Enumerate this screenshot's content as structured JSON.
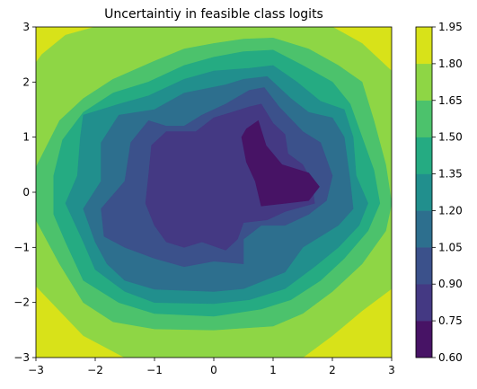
{
  "chart_data": {
    "type": "contour",
    "title": "Uncertaintiy in feasible class logits",
    "xlabel": "",
    "ylabel": "",
    "xlim": [
      -3,
      3
    ],
    "ylim": [
      -3,
      3
    ],
    "x_ticks": [
      "−3",
      "−2",
      "−1",
      "0",
      "1",
      "2",
      "3"
    ],
    "y_ticks": [
      "−3",
      "−2",
      "−1",
      "0",
      "1",
      "2",
      "3"
    ],
    "colorbar": {
      "levels": [
        0.6,
        0.75,
        0.9,
        1.05,
        1.2,
        1.35,
        1.5,
        1.65,
        1.8,
        1.95
      ],
      "labels": [
        "0.60",
        "0.75",
        "0.90",
        "1.05",
        "1.20",
        "1.35",
        "1.50",
        "1.65",
        "1.80",
        "1.95"
      ],
      "colors": [
        "#471365",
        "#443983",
        "#3b518b",
        "#2d6f8e",
        "#218f8d",
        "#25ab82",
        "#4cc26c",
        "#8ed645",
        "#d8e219"
      ]
    },
    "contour_regions": [
      {
        "level_min": 1.8,
        "level_max": 1.95,
        "color": "#d8e219",
        "outline": [
          [
            -3,
            3
          ],
          [
            3,
            3
          ],
          [
            3,
            -3
          ],
          [
            -3,
            -3
          ]
        ]
      },
      {
        "level_min": 1.65,
        "level_max": 1.8,
        "color": "#8ed645",
        "outline": [
          [
            -3,
            2.35
          ],
          [
            -2.9,
            2.5
          ],
          [
            -2.5,
            2.85
          ],
          [
            -2,
            3
          ],
          [
            2,
            3
          ],
          [
            2.5,
            2.7
          ],
          [
            3,
            2.2
          ],
          [
            3,
            -1.75
          ],
          [
            2.5,
            -2.15
          ],
          [
            2,
            -2.6
          ],
          [
            1.5,
            -3
          ],
          [
            -1.5,
            -3
          ],
          [
            -2.2,
            -2.6
          ],
          [
            -3,
            -1.7
          ]
        ]
      },
      {
        "level_min": 1.5,
        "level_max": 1.65,
        "color": "#4cc26c",
        "outline": [
          [
            -3,
            0.45
          ],
          [
            -2.6,
            1.3
          ],
          [
            -2.2,
            1.7
          ],
          [
            -1.7,
            2.05
          ],
          [
            -1,
            2.38
          ],
          [
            -0.5,
            2.6
          ],
          [
            0,
            2.7
          ],
          [
            0.5,
            2.78
          ],
          [
            1,
            2.8
          ],
          [
            1.6,
            2.6
          ],
          [
            2.1,
            2.3
          ],
          [
            2.5,
            2
          ],
          [
            2.7,
            1.3
          ],
          [
            2.9,
            0.5
          ],
          [
            3,
            -0.2
          ],
          [
            2.9,
            -0.7
          ],
          [
            2.5,
            -1.3
          ],
          [
            2,
            -1.8
          ],
          [
            1.5,
            -2.2
          ],
          [
            1,
            -2.43
          ],
          [
            0,
            -2.5
          ],
          [
            -1,
            -2.48
          ],
          [
            -1.7,
            -2.35
          ],
          [
            -2.2,
            -2
          ],
          [
            -2.6,
            -1.3
          ],
          [
            -3,
            -0.5
          ]
        ]
      },
      {
        "level_min": 1.35,
        "level_max": 1.5,
        "color": "#25ab82",
        "outline": [
          [
            -2.7,
            0.3
          ],
          [
            -2.55,
            0.95
          ],
          [
            -2.2,
            1.45
          ],
          [
            -1.7,
            1.8
          ],
          [
            -1.1,
            2
          ],
          [
            -0.5,
            2.3
          ],
          [
            0,
            2.45
          ],
          [
            0.5,
            2.55
          ],
          [
            1,
            2.58
          ],
          [
            1.5,
            2.3
          ],
          [
            2,
            2
          ],
          [
            2.3,
            1.6
          ],
          [
            2.5,
            1
          ],
          [
            2.7,
            0.4
          ],
          [
            2.8,
            -0.2
          ],
          [
            2.6,
            -0.7
          ],
          [
            2.2,
            -1.2
          ],
          [
            1.8,
            -1.6
          ],
          [
            1.3,
            -1.95
          ],
          [
            0.8,
            -2.12
          ],
          [
            0,
            -2.25
          ],
          [
            -1,
            -2.2
          ],
          [
            -1.6,
            -2
          ],
          [
            -2.2,
            -1.6
          ],
          [
            -2.5,
            -0.9
          ],
          [
            -2.7,
            -0.4
          ]
        ]
      },
      {
        "level_min": 1.2,
        "level_max": 1.35,
        "color": "#218f8d",
        "outline": [
          [
            -2.3,
            0.3
          ],
          [
            -2.25,
            1
          ],
          [
            -2.2,
            1.4
          ],
          [
            -1.6,
            1.6
          ],
          [
            -1.1,
            1.75
          ],
          [
            -0.5,
            2.05
          ],
          [
            0,
            2.2
          ],
          [
            0.6,
            2.25
          ],
          [
            1,
            2.3
          ],
          [
            1.4,
            2
          ],
          [
            1.8,
            1.65
          ],
          [
            2.2,
            1.5
          ],
          [
            2.35,
            1
          ],
          [
            2.4,
            0.3
          ],
          [
            2.6,
            -0.2
          ],
          [
            2.45,
            -0.6
          ],
          [
            2.1,
            -1
          ],
          [
            1.7,
            -1.35
          ],
          [
            1.2,
            -1.75
          ],
          [
            0.6,
            -1.95
          ],
          [
            0,
            -2.02
          ],
          [
            -1,
            -2
          ],
          [
            -1.5,
            -1.8
          ],
          [
            -2,
            -1.4
          ],
          [
            -2.2,
            -0.9
          ],
          [
            -2.5,
            -0.2
          ]
        ]
      },
      {
        "level_min": 1.05,
        "level_max": 1.2,
        "color": "#2d6f8e",
        "outline": [
          [
            -1.9,
            0.2
          ],
          [
            -1.9,
            0.9
          ],
          [
            -1.6,
            1.4
          ],
          [
            -1,
            1.5
          ],
          [
            -0.5,
            1.8
          ],
          [
            0.2,
            1.95
          ],
          [
            0.5,
            2.05
          ],
          [
            0.9,
            2.1
          ],
          [
            1.3,
            1.7
          ],
          [
            1.6,
            1.45
          ],
          [
            2,
            1.35
          ],
          [
            2.2,
            1
          ],
          [
            2.3,
            0.2
          ],
          [
            2.35,
            -0.3
          ],
          [
            2.1,
            -0.6
          ],
          [
            1.5,
            -1
          ],
          [
            1.2,
            -1.45
          ],
          [
            0.5,
            -1.75
          ],
          [
            0,
            -1.8
          ],
          [
            -1,
            -1.76
          ],
          [
            -1.5,
            -1.6
          ],
          [
            -1.8,
            -1.3
          ],
          [
            -2,
            -0.9
          ],
          [
            -2.2,
            -0.3
          ]
        ]
      },
      {
        "level_min": 0.9,
        "level_max": 1.05,
        "color": "#3b518b",
        "outline": [
          [
            -1.5,
            0.2
          ],
          [
            -1.4,
            0.9
          ],
          [
            -1.1,
            1.3
          ],
          [
            -0.8,
            1.2
          ],
          [
            -0.5,
            1.2
          ],
          [
            -0.2,
            1.4
          ],
          [
            0.2,
            1.6
          ],
          [
            0.6,
            1.85
          ],
          [
            0.85,
            1.9
          ],
          [
            1.1,
            1.55
          ],
          [
            1.5,
            1.1
          ],
          [
            1.8,
            0.9
          ],
          [
            2,
            0.3
          ],
          [
            1.9,
            -0.15
          ],
          [
            1.6,
            -0.4
          ],
          [
            1.2,
            -0.6
          ],
          [
            0.8,
            -0.6
          ],
          [
            0.5,
            -0.85
          ],
          [
            0.5,
            -1.3
          ],
          [
            0,
            -1.25
          ],
          [
            -0.5,
            -1.35
          ],
          [
            -1,
            -1.2
          ],
          [
            -1.5,
            -1
          ],
          [
            -1.85,
            -0.8
          ],
          [
            -1.9,
            -0.3
          ]
        ]
      },
      {
        "level_min": 0.75,
        "level_max": 0.9,
        "color": "#443983",
        "outline": [
          [
            -1.15,
            -0.2
          ],
          [
            -1.1,
            0.3
          ],
          [
            -1.05,
            0.85
          ],
          [
            -0.8,
            1.1
          ],
          [
            -0.55,
            1.1
          ],
          [
            -0.3,
            1.1
          ],
          [
            0,
            1.35
          ],
          [
            0.3,
            1.45
          ],
          [
            0.6,
            1.55
          ],
          [
            0.8,
            1.6
          ],
          [
            1,
            1.25
          ],
          [
            1.2,
            1.05
          ],
          [
            1.25,
            0.7
          ],
          [
            1.5,
            0.5
          ],
          [
            1.65,
            0.2
          ],
          [
            1.7,
            -0.2
          ],
          [
            1.2,
            -0.35
          ],
          [
            0.9,
            -0.5
          ],
          [
            0.5,
            -0.55
          ],
          [
            0.4,
            -0.85
          ],
          [
            0.2,
            -1.05
          ],
          [
            -0.2,
            -0.9
          ],
          [
            -0.5,
            -1
          ],
          [
            -0.8,
            -0.9
          ],
          [
            -1,
            -0.6
          ]
        ]
      },
      {
        "level_min": 0.6,
        "level_max": 0.75,
        "color": "#471365",
        "outline": [
          [
            0.47,
            1
          ],
          [
            0.55,
            1.15
          ],
          [
            0.75,
            1.3
          ],
          [
            0.88,
            0.85
          ],
          [
            1.15,
            0.5
          ],
          [
            1.6,
            0.35
          ],
          [
            1.78,
            0.1
          ],
          [
            1.6,
            -0.15
          ],
          [
            1.2,
            -0.2
          ],
          [
            0.8,
            -0.25
          ],
          [
            0.7,
            0.2
          ],
          [
            0.55,
            0.55
          ]
        ]
      }
    ]
  }
}
